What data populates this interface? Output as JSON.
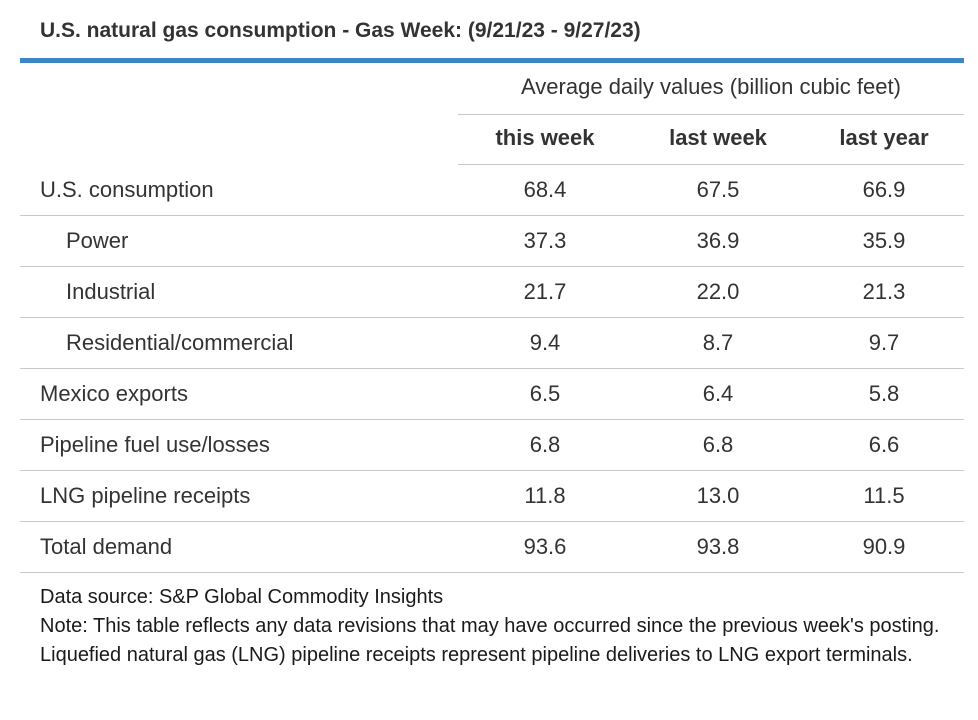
{
  "title": "U.S. natural gas consumption - Gas Week: (9/21/23 - 9/27/23)",
  "accent_color": "#3c85c6",
  "group_header": "Average daily values (billion cubic feet)",
  "columns": [
    "this week",
    "last week",
    "last year"
  ],
  "rows": [
    {
      "label": "U.S. consumption",
      "indent": false,
      "values": [
        "68.4",
        "67.5",
        "66.9"
      ]
    },
    {
      "label": "Power",
      "indent": true,
      "values": [
        "37.3",
        "36.9",
        "35.9"
      ]
    },
    {
      "label": "Industrial",
      "indent": true,
      "values": [
        "21.7",
        "22.0",
        "21.3"
      ]
    },
    {
      "label": "Residential/commercial",
      "indent": true,
      "values": [
        "9.4",
        "8.7",
        "9.7"
      ]
    },
    {
      "label": "Mexico exports",
      "indent": false,
      "values": [
        "6.5",
        "6.4",
        "5.8"
      ]
    },
    {
      "label": "Pipeline fuel use/losses",
      "indent": false,
      "values": [
        "6.8",
        "6.8",
        "6.6"
      ]
    },
    {
      "label": "LNG pipeline receipts",
      "indent": false,
      "values": [
        "11.8",
        "13.0",
        "11.5"
      ]
    },
    {
      "label": "Total demand",
      "indent": false,
      "values": [
        "93.6",
        "93.8",
        "90.9"
      ]
    }
  ],
  "notes": {
    "source": "Data source: S&P Global Commodity Insights",
    "note": "Note: This table reflects any data revisions that may have occurred since the previous week's posting. Liquefied natural gas (LNG) pipeline receipts represent pipeline deliveries to LNG export terminals."
  },
  "chart_data": {
    "type": "table",
    "title": "U.S. natural gas consumption - Gas Week: (9/21/23 - 9/27/23)",
    "subtitle": "Average daily values (billion cubic feet)",
    "categories": [
      "U.S. consumption",
      "Power",
      "Industrial",
      "Residential/commercial",
      "Mexico exports",
      "Pipeline fuel use/losses",
      "LNG pipeline receipts",
      "Total demand"
    ],
    "series": [
      {
        "name": "this week",
        "values": [
          68.4,
          37.3,
          21.7,
          9.4,
          6.5,
          6.8,
          11.8,
          93.6
        ]
      },
      {
        "name": "last week",
        "values": [
          67.5,
          36.9,
          22.0,
          8.7,
          6.4,
          6.8,
          13.0,
          93.8
        ]
      },
      {
        "name": "last year",
        "values": [
          66.9,
          35.9,
          21.3,
          9.7,
          5.8,
          6.6,
          11.5,
          90.9
        ]
      }
    ]
  }
}
